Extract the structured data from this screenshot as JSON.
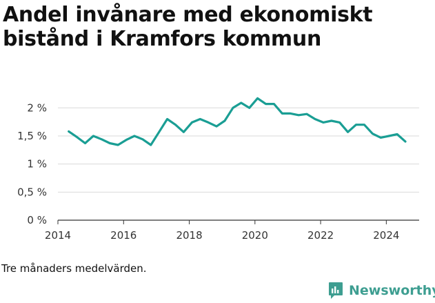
{
  "title": "Andel invånare med ekonomiskt bistånd i Kramfors kommun",
  "note": "Tre månaders medelvärden.",
  "brand": {
    "name": "Newsworthy",
    "color": "#3e9e91",
    "icon": "newsworthy-logo-icon"
  },
  "colors": {
    "line": "#1a9e94",
    "grid": "#d9d9d9",
    "axis": "#333333"
  },
  "chart_data": {
    "type": "line",
    "title": "",
    "xlabel": "",
    "ylabel": "",
    "ylim": [
      0,
      2.2
    ],
    "xlim": [
      2014,
      2025
    ],
    "y_ticks": [
      {
        "value": 0,
        "label": "0 %"
      },
      {
        "value": 0.5,
        "label": "0,5 %"
      },
      {
        "value": 1,
        "label": "1 %"
      },
      {
        "value": 1.5,
        "label": "1,5 %"
      },
      {
        "value": 2,
        "label": "2 %"
      }
    ],
    "x_ticks": [
      {
        "value": 2014,
        "label": "2014"
      },
      {
        "value": 2016,
        "label": "2016"
      },
      {
        "value": 2018,
        "label": "2018"
      },
      {
        "value": 2020,
        "label": "2020"
      },
      {
        "value": 2022,
        "label": "2022"
      },
      {
        "value": 2024,
        "label": "2024"
      }
    ],
    "grid": true,
    "legend": "none",
    "series": [
      {
        "x": [
          2014.33,
          2014.58,
          2014.83,
          2015.08,
          2015.33,
          2015.58,
          2015.83,
          2016.08,
          2016.33,
          2016.58,
          2016.83,
          2017.08,
          2017.33,
          2017.58,
          2017.83,
          2018.08,
          2018.33,
          2018.58,
          2018.83,
          2019.08,
          2019.33,
          2019.58,
          2019.83,
          2020.08,
          2020.33,
          2020.58,
          2020.83,
          2021.08,
          2021.33,
          2021.58,
          2021.83,
          2022.08,
          2022.33,
          2022.58,
          2022.83,
          2023.08,
          2023.33,
          2023.58,
          2023.83,
          2024.08,
          2024.33,
          2024.58
        ],
        "y": [
          1.58,
          1.48,
          1.37,
          1.5,
          1.44,
          1.37,
          1.34,
          1.43,
          1.5,
          1.44,
          1.34,
          1.57,
          1.8,
          1.7,
          1.57,
          1.74,
          1.8,
          1.74,
          1.67,
          1.77,
          2.0,
          2.09,
          2.0,
          2.17,
          2.07,
          2.07,
          1.9,
          1.9,
          1.87,
          1.89,
          1.8,
          1.74,
          1.77,
          1.74,
          1.57,
          1.7,
          1.7,
          1.54,
          1.47,
          1.5,
          1.53,
          1.4
        ]
      }
    ]
  }
}
